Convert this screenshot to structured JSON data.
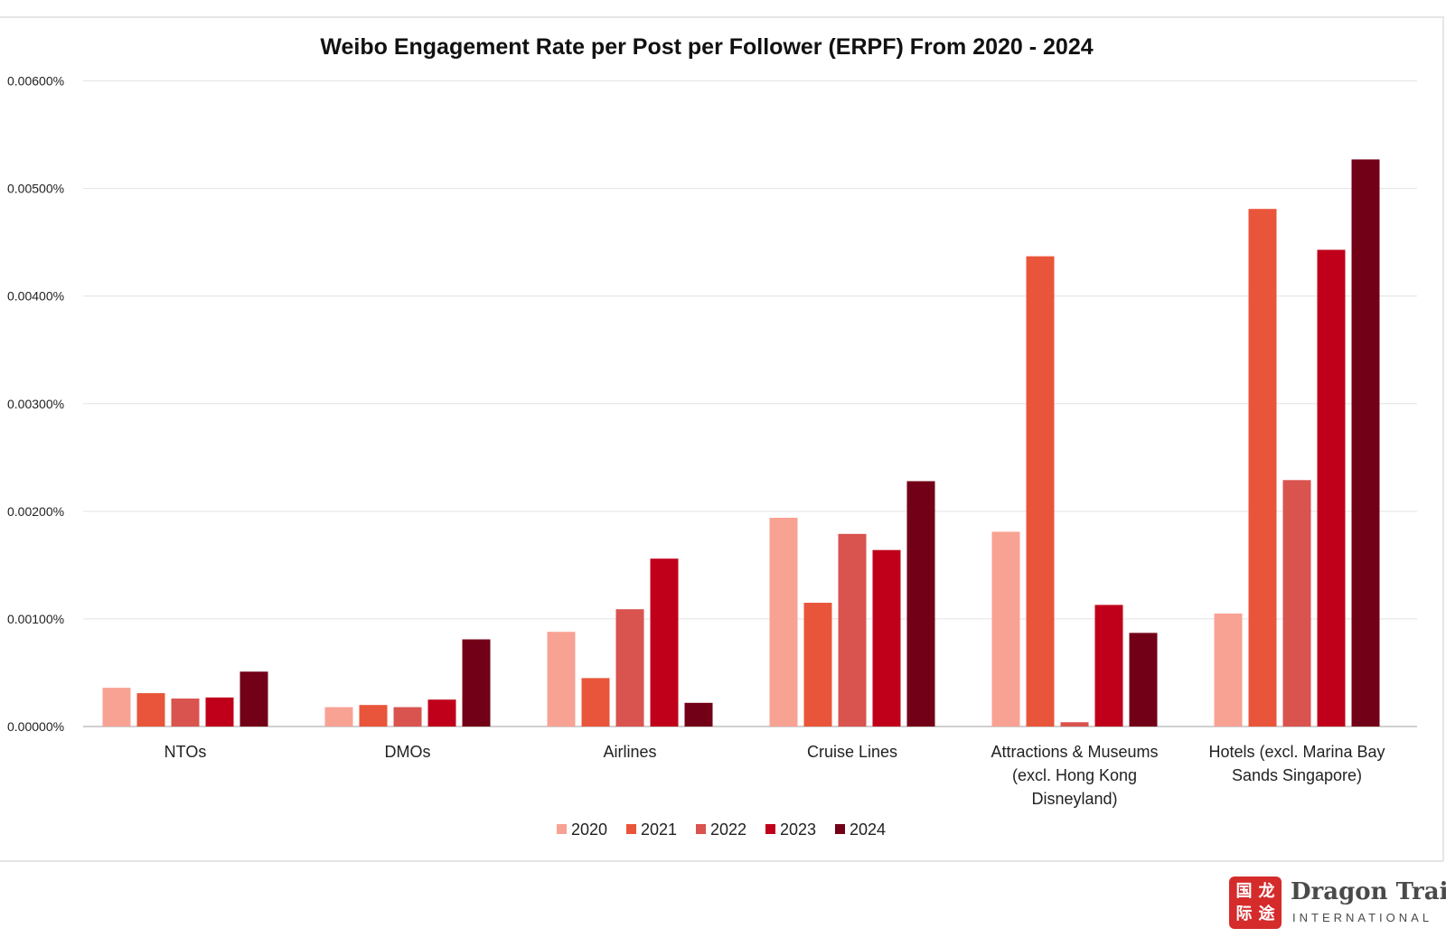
{
  "chart_data": {
    "type": "bar",
    "title": "Weibo Engagement Rate per Post per Follower (ERPF) From 2020 - 2024",
    "xlabel": "",
    "ylabel": "",
    "ylim": [
      0,
      0.006
    ],
    "y_ticks": [
      "0.00000%",
      "0.00100%",
      "0.00200%",
      "0.00300%",
      "0.00400%",
      "0.00500%",
      "0.00600%"
    ],
    "grid": true,
    "legend_position": "bottom",
    "categories": [
      [
        "NTOs"
      ],
      [
        "DMOs"
      ],
      [
        "Airlines"
      ],
      [
        "Cruise Lines"
      ],
      [
        "Attractions & Museums",
        "(excl. Hong Kong",
        "Disneyland)"
      ],
      [
        "Hotels (excl. Marina Bay",
        "Sands Singapore)"
      ]
    ],
    "series": [
      {
        "name": "2020",
        "color": "#f8a294",
        "values": [
          0.00036,
          0.00018,
          0.00088,
          0.00194,
          0.00181,
          0.00105
        ]
      },
      {
        "name": "2021",
        "color": "#e9553a",
        "values": [
          0.00031,
          0.0002,
          0.00045,
          0.00115,
          0.00437,
          0.00481
        ]
      },
      {
        "name": "2022",
        "color": "#d9534f",
        "values": [
          0.00026,
          0.00018,
          0.00109,
          0.00179,
          4e-05,
          0.00229
        ]
      },
      {
        "name": "2023",
        "color": "#c0001a",
        "values": [
          0.00027,
          0.00025,
          0.00156,
          0.00164,
          0.00113,
          0.00443
        ]
      },
      {
        "name": "2024",
        "color": "#720016",
        "values": [
          0.00051,
          0.00081,
          0.00022,
          0.00228,
          0.00087,
          0.00527
        ]
      }
    ]
  },
  "brand": {
    "name": "Dragon Trail",
    "subtitle": "INTERNATIONAL",
    "mark_glyphs": [
      "国",
      "龙",
      "际",
      "途"
    ]
  }
}
